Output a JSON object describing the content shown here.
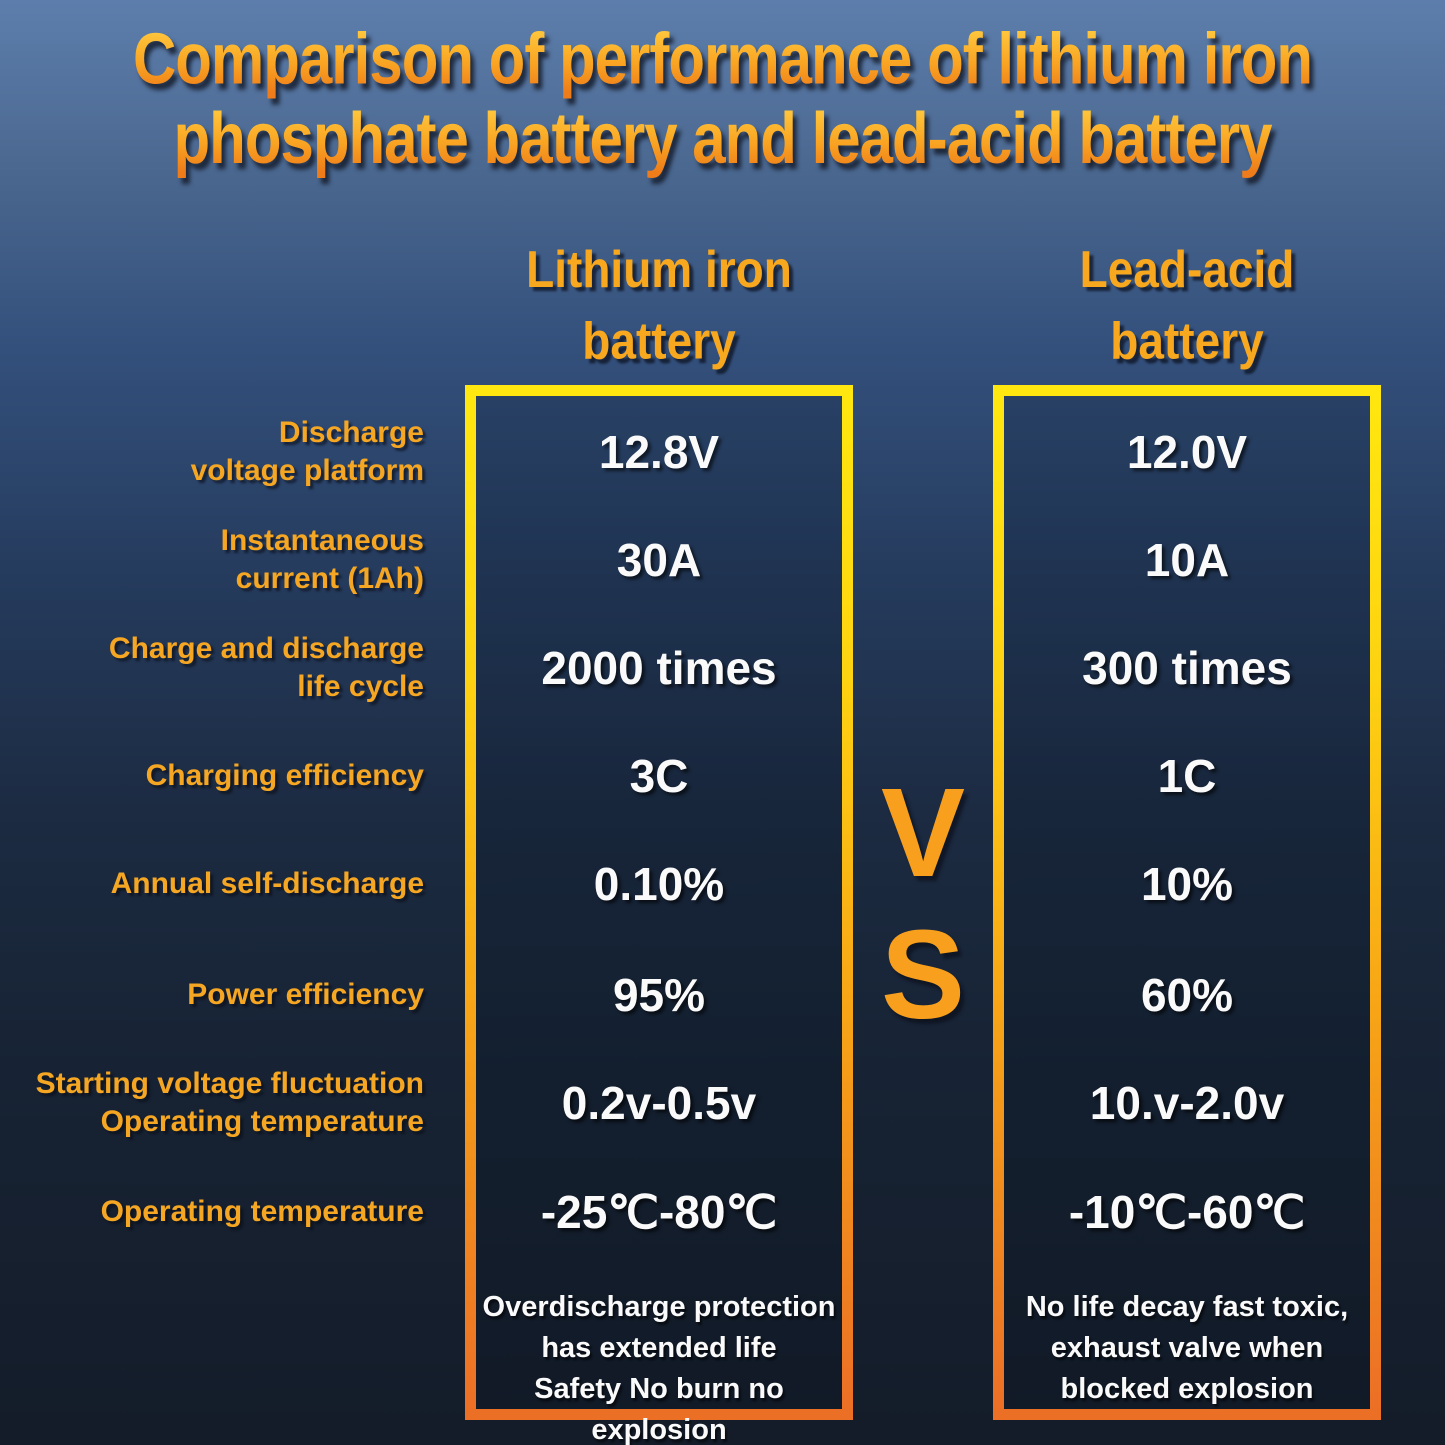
{
  "title": {
    "line1": "Comparison of performance of lithium iron",
    "line2": "phosphate battery and lead-acid battery"
  },
  "headers": {
    "lithium": [
      "Lithium iron",
      "battery"
    ],
    "lead": [
      "Lead-acid",
      "battery"
    ]
  },
  "vs": {
    "v": "V",
    "s": "S"
  },
  "chart_data": {
    "type": "table",
    "title": "Comparison of performance of lithium iron phosphate battery and lead-acid battery",
    "columns": [
      "Lithium iron battery",
      "Lead-acid battery"
    ],
    "rows": [
      {
        "label_lines": [
          "Discharge",
          "voltage platform"
        ],
        "lithium": "12.8V",
        "lead": "12.0V"
      },
      {
        "label_lines": [
          "Instantaneous",
          "current (1Ah)"
        ],
        "lithium": "30A",
        "lead": "10A"
      },
      {
        "label_lines": [
          "Charge and discharge",
          "life cycle"
        ],
        "lithium": "2000 times",
        "lead": "300 times"
      },
      {
        "label_lines": [
          "Charging efficiency"
        ],
        "lithium": "3C",
        "lead": "1C"
      },
      {
        "label_lines": [
          "Annual self-discharge"
        ],
        "lithium": "0.10%",
        "lead": "10%"
      },
      {
        "label_lines": [
          "Power efficiency"
        ],
        "lithium": "95%",
        "lead": "60%"
      },
      {
        "label_lines": [
          "Starting voltage fluctuation",
          "Operating temperature"
        ],
        "lithium": "0.2v-0.5v",
        "lead": "10.v-2.0v"
      },
      {
        "label_lines": [
          "Operating temperature"
        ],
        "lithium": "-25℃-80℃",
        "lead": "-10℃-60℃"
      }
    ],
    "footers": {
      "lithium": [
        "Overdischarge protection",
        "has extended life",
        "Safety No burn no explosion"
      ],
      "lead": [
        "No life decay fast toxic,",
        "exhaust valve when",
        "blocked explosion"
      ]
    }
  },
  "colors": {
    "background_top": "#5d7eac",
    "background_bottom": "#141c29",
    "accent_orange": "#f5a623",
    "title_gradient_top": "#ffc83e",
    "title_gradient_bottom": "#ee7c1a",
    "border_gradient_top": "#ffe70f",
    "border_gradient_bottom": "#ec6f26",
    "value_text": "#fafafa"
  }
}
